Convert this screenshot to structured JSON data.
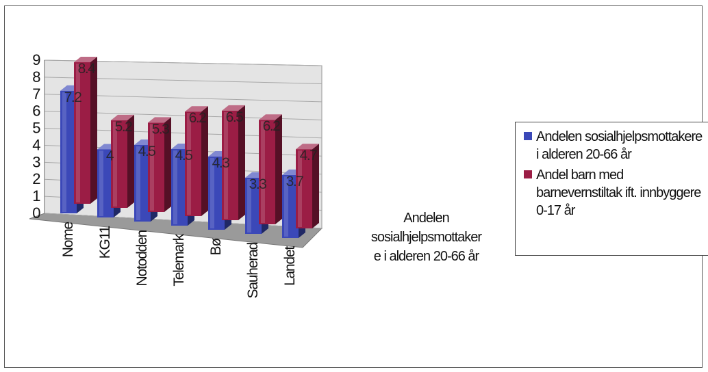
{
  "chart_data": {
    "type": "bar",
    "categories": [
      "Nome",
      "KG11",
      "Notodden",
      "Telemark",
      "Bø",
      "Sauherad",
      "Landet"
    ],
    "series": [
      {
        "name": "Andelen sosialhjelpsmottakere i alderen 20-66 år",
        "values": [
          7.2,
          4,
          4.5,
          4.5,
          4.3,
          3.3,
          3.7
        ],
        "color": "#3b48b8"
      },
      {
        "name": "Andel barn med barnevernstiltak ift. innbyggere 0-17 år",
        "values": [
          8.4,
          5.2,
          5.3,
          6.2,
          6.5,
          6.2,
          4.7
        ],
        "color": "#9b1d45"
      }
    ],
    "yticks": [
      "0",
      "1",
      "2",
      "3",
      "4",
      "5",
      "6",
      "7",
      "8",
      "9"
    ],
    "ylim": [
      0,
      9
    ],
    "axis_title": "Andelen\nsosialhjelpsmottaker\ne i alderen 20-66 år",
    "legend_position": "right",
    "style": "3d-clustered-column",
    "grid": true
  }
}
